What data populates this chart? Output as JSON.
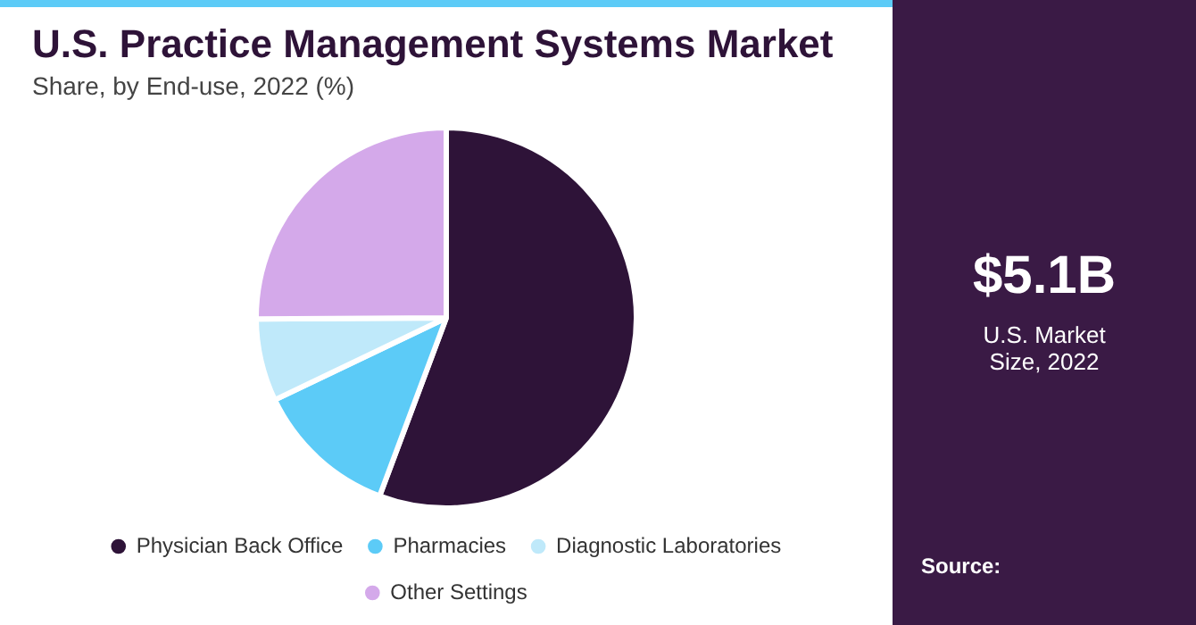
{
  "chart_data": {
    "type": "pie",
    "title": "U.S. Practice Management Systems Market",
    "subtitle": "Share, by End-use, 2022 (%)",
    "categories": [
      "Physician Back Office",
      "Pharmacies",
      "Diagnostic Laboratories",
      "Other Settings"
    ],
    "values": [
      55.7,
      12.2,
      7.0,
      25.1
    ],
    "colors": [
      "#2e1338",
      "#5ccbf7",
      "#bfe9fa",
      "#d4a9ea"
    ],
    "legend": "bottom",
    "annotations": [
      "$5.1B",
      "U.S. Market Size, 2022",
      "Source:"
    ]
  }
}
